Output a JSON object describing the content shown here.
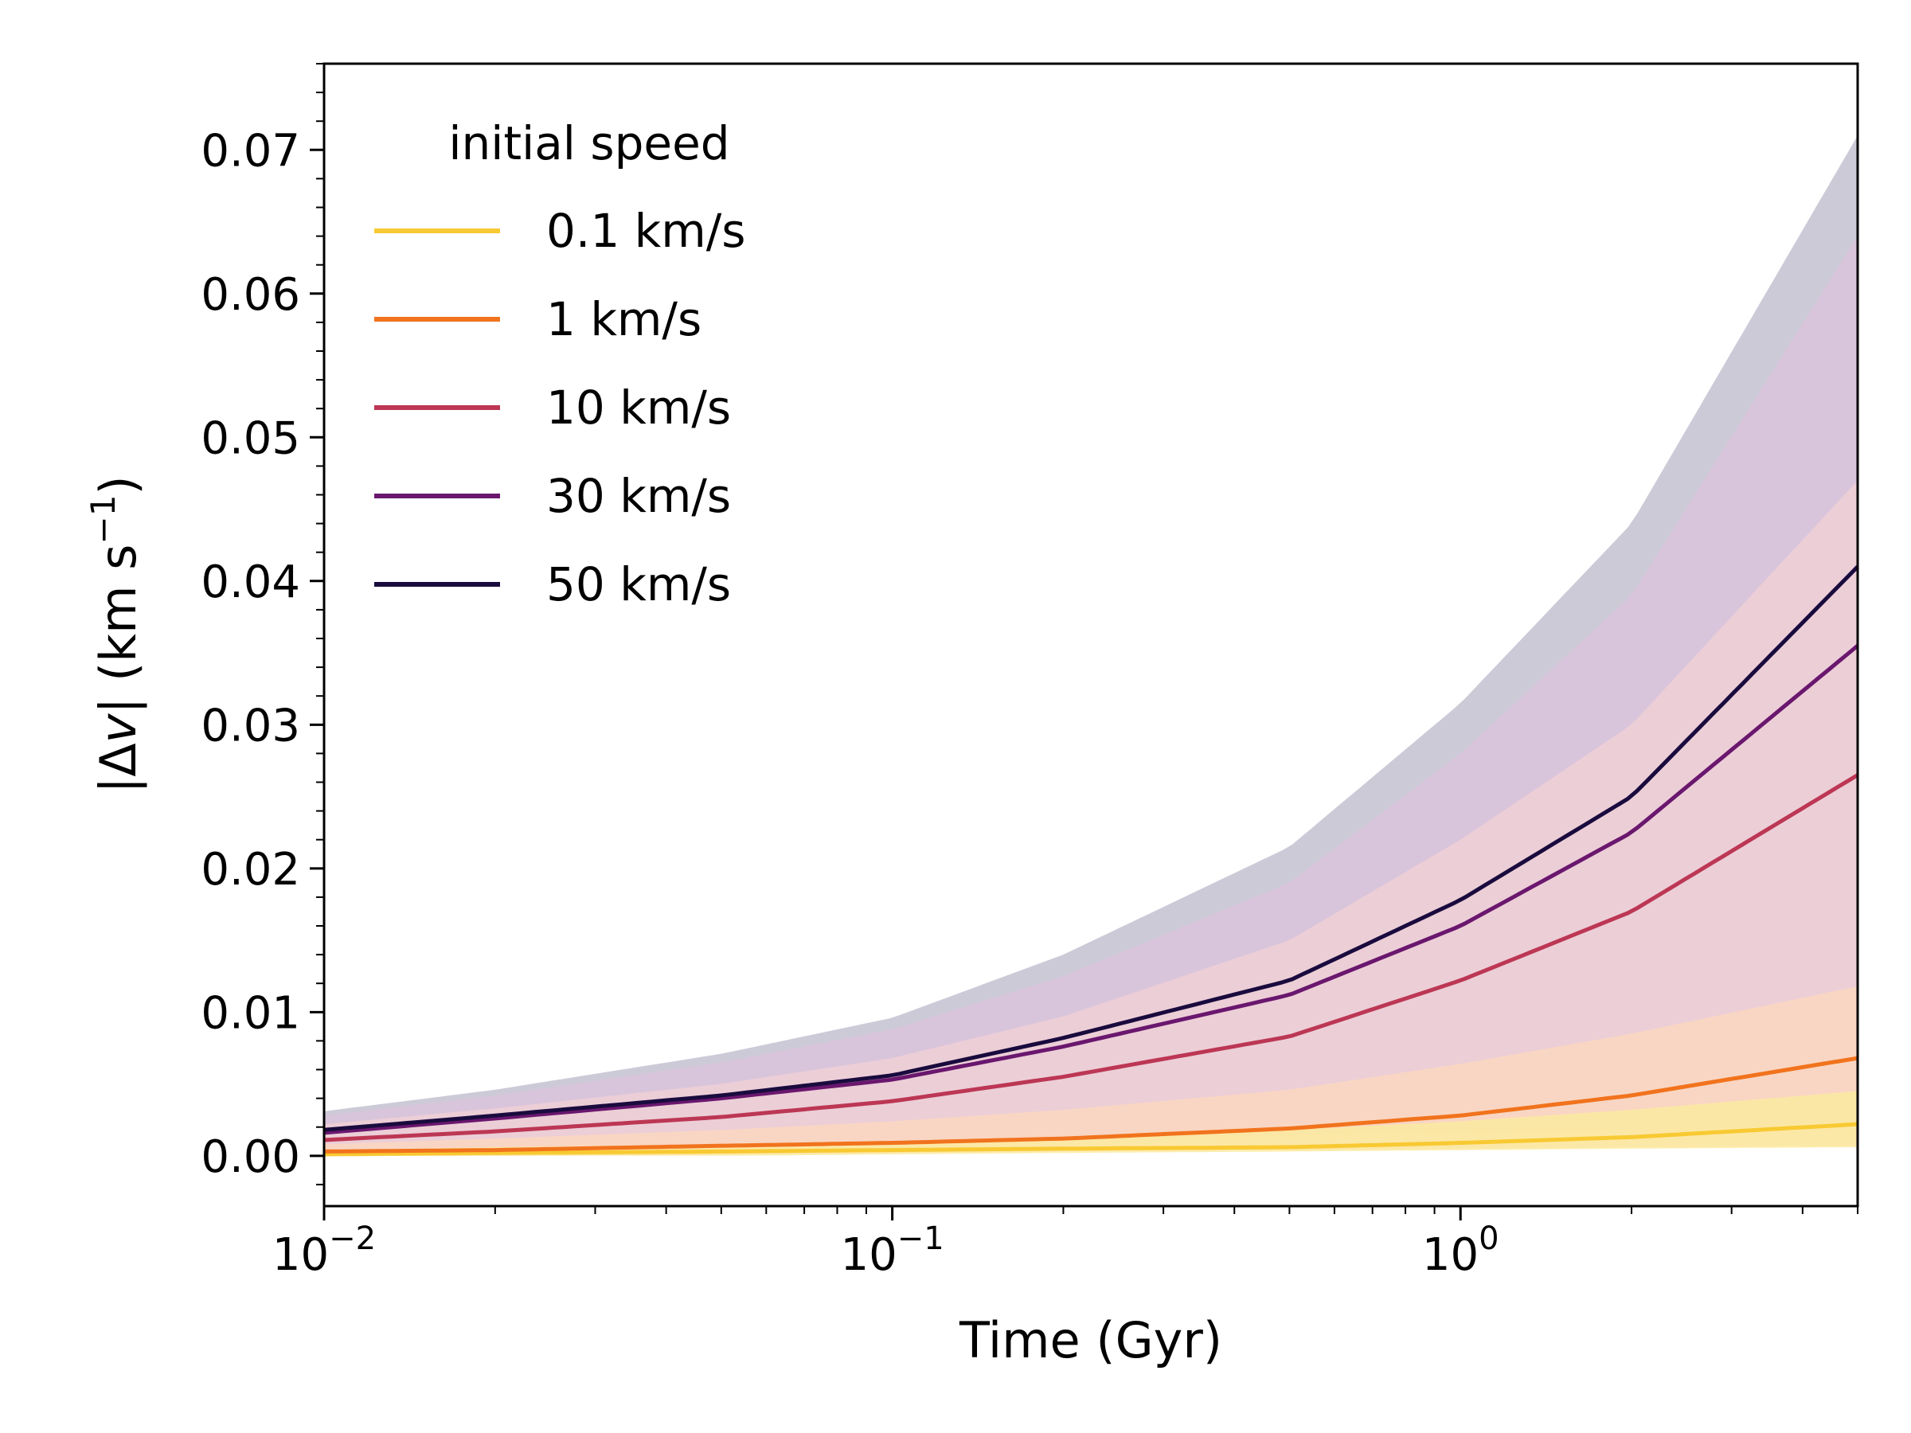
{
  "chart_data": {
    "type": "line",
    "xlabel": "Time (Gyr)",
    "ylabel_parts": {
      "open": "|Δ",
      "var": "v",
      "close": "| (km s",
      "exp": "−1",
      "end": ")"
    },
    "xscale": "log",
    "xlim": [
      0.01,
      5.0
    ],
    "ylim": [
      -0.0035,
      0.076
    ],
    "x_ticks": [
      {
        "value": 0.01,
        "base": "10",
        "exp": "−2"
      },
      {
        "value": 0.1,
        "base": "10",
        "exp": "−1"
      },
      {
        "value": 1,
        "base": "10",
        "exp": "0"
      }
    ],
    "y_ticks": [
      {
        "value": 0.0,
        "label": "0.00"
      },
      {
        "value": 0.01,
        "label": "0.01"
      },
      {
        "value": 0.02,
        "label": "0.02"
      },
      {
        "value": 0.03,
        "label": "0.03"
      },
      {
        "value": 0.04,
        "label": "0.04"
      },
      {
        "value": 0.05,
        "label": "0.05"
      },
      {
        "value": 0.06,
        "label": "0.06"
      },
      {
        "value": 0.07,
        "label": "0.07"
      }
    ],
    "grid": false,
    "legend": {
      "title": "initial speed",
      "placement": "top-left"
    },
    "x": [
      0.01,
      0.02,
      0.05,
      0.1,
      0.2,
      0.5,
      1.0,
      2.0,
      5.0
    ],
    "series": [
      {
        "name": "0.1 km/s",
        "color": "#f8c932",
        "band_color": "#fbeaa0",
        "values": [
          0.0001,
          0.0002,
          0.0003,
          0.0004,
          0.0005,
          0.0006,
          0.0009,
          0.0013,
          0.0022
        ],
        "band_low": [
          0.0,
          0.0,
          0.0,
          0.0001,
          0.0002,
          0.0003,
          0.0004,
          0.0005,
          0.0006
        ],
        "band_high": [
          0.0004,
          0.0006,
          0.0008,
          0.001,
          0.0013,
          0.0018,
          0.0024,
          0.0032,
          0.0045
        ]
      },
      {
        "name": "1 km/s",
        "color": "#f1731d",
        "band_color": "#fbd7bf",
        "values": [
          0.0003,
          0.0004,
          0.0007,
          0.0009,
          0.0012,
          0.0019,
          0.0028,
          0.0042,
          0.0068
        ],
        "band_low": [
          0.0,
          0.0,
          0.0001,
          0.0002,
          0.0003,
          0.0004,
          0.0005,
          0.0006,
          0.0007
        ],
        "band_high": [
          0.0008,
          0.0012,
          0.0018,
          0.0024,
          0.0032,
          0.0046,
          0.0064,
          0.0085,
          0.0118
        ]
      },
      {
        "name": "10 km/s",
        "color": "#bc3754",
        "band_color": "#eecfd6",
        "values": [
          0.0011,
          0.0017,
          0.0027,
          0.0038,
          0.0055,
          0.0083,
          0.0122,
          0.017,
          0.0265
        ],
        "band_low": [
          0.0003,
          0.0004,
          0.0006,
          0.0008,
          0.001,
          0.0012,
          0.0014,
          0.0016,
          0.0018
        ],
        "band_high": [
          0.0022,
          0.0033,
          0.005,
          0.0068,
          0.0097,
          0.015,
          0.022,
          0.03,
          0.047
        ]
      },
      {
        "name": "30 km/s",
        "color": "#6a176e",
        "band_color": "#dbc4dc",
        "values": [
          0.0016,
          0.0026,
          0.004,
          0.0053,
          0.0076,
          0.0112,
          0.016,
          0.0225,
          0.0355
        ],
        "band_low": [
          0.0005,
          0.0006,
          0.0008,
          0.001,
          0.0012,
          0.0014,
          0.0016,
          0.0018,
          0.002
        ],
        "band_high": [
          0.0028,
          0.0042,
          0.0065,
          0.0088,
          0.0125,
          0.019,
          0.028,
          0.039,
          0.064
        ]
      },
      {
        "name": "50 km/s",
        "color": "#1a0b3e",
        "band_color": "#c4c1d1",
        "values": [
          0.0018,
          0.0028,
          0.0042,
          0.0056,
          0.0082,
          0.0122,
          0.0178,
          0.025,
          0.041
        ],
        "band_low": [
          0.0005,
          0.0006,
          0.0008,
          0.001,
          0.0012,
          0.0014,
          0.0016,
          0.0018,
          0.002
        ],
        "band_high": [
          0.0031,
          0.0046,
          0.0071,
          0.0096,
          0.014,
          0.0215,
          0.0315,
          0.044,
          0.071
        ]
      }
    ]
  }
}
